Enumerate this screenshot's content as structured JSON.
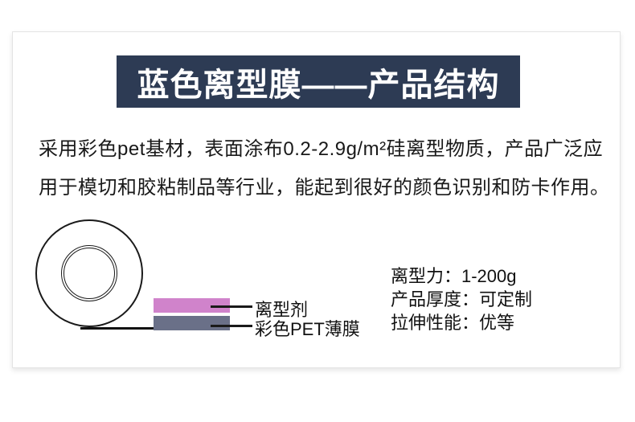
{
  "banner": {
    "title": "蓝色离型膜——产品结构"
  },
  "description": {
    "lines": [
      "采用彩色pet基材，表面涂布0.2-2.9g/m²硅离型物质，产品广泛应",
      "用于模切和胶粘制品等行业，能起到很好的颜色识别和防卡作用。"
    ]
  },
  "diagram": {
    "layers": [
      {
        "label": "离型剂",
        "color": "#d083cb"
      },
      {
        "label": "彩色PET薄膜",
        "color": "#6a7088"
      }
    ]
  },
  "specs": {
    "items": [
      "离型力：1-200g",
      "产品厚度：可定制",
      "拉伸性能：优等"
    ]
  },
  "colors": {
    "banner_bg": "#2d3b54",
    "release_agent_fill": "#d083cb",
    "pet_film_fill": "#6a7088",
    "text": "#191919"
  }
}
